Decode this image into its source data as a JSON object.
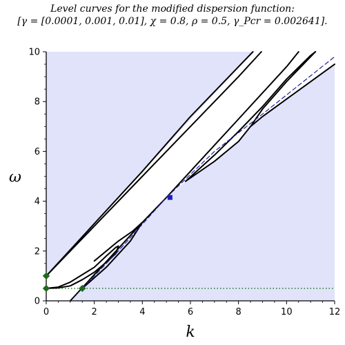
{
  "chart_data": {
    "type": "line",
    "title_line1": "Level curves for the modified dispersion function:",
    "title_line2": "[γ = [0.0001, 0.001, 0.01], χ = 0.8, ρ = 0.5, γ_Pcr = 0.002641].",
    "xlabel": "k",
    "ylabel": "ω",
    "xlim": [
      0,
      12
    ],
    "ylim": [
      0,
      10
    ],
    "x_ticks": [
      "0",
      "2",
      "4",
      "6",
      "8",
      "10",
      "12"
    ],
    "y_ticks": [
      "0",
      "2",
      "4",
      "6",
      "8",
      "10"
    ],
    "grid": false,
    "colors": {
      "shade": "#e1e3fa",
      "curve": "#000000",
      "blue_line": "#1f1f9e",
      "marker_green": "#1e6b1e",
      "marker_blue": "#1f1fbf",
      "dotted": "#2e7d32"
    },
    "series": [
      {
        "type": "curve",
        "points": [
          [
            0,
            1
          ],
          [
            2,
            3
          ],
          [
            4,
            5
          ],
          [
            6,
            7
          ],
          [
            8,
            9
          ],
          [
            8.95,
            10
          ]
        ]
      },
      {
        "type": "curve",
        "points": [
          [
            0,
            1
          ],
          [
            2,
            3.1
          ],
          [
            4,
            5.2
          ],
          [
            6,
            7.4
          ],
          [
            8,
            9.4
          ],
          [
            8.6,
            10
          ]
        ]
      },
      {
        "type": "curve",
        "points": [
          [
            0,
            0.5
          ],
          [
            0.5,
            0.55
          ],
          [
            1,
            0.75
          ],
          [
            2,
            1.35
          ],
          [
            2.5,
            1.8
          ],
          [
            2.9,
            2.15
          ],
          [
            3,
            2.2
          ],
          [
            2.9,
            1.9
          ],
          [
            2.5,
            1.55
          ],
          [
            2,
            1.15
          ],
          [
            1.5,
            0.85
          ],
          [
            1,
            0.6
          ],
          [
            0.5,
            0.52
          ],
          [
            0,
            0.5
          ]
        ]
      },
      {
        "type": "curve",
        "points": [
          [
            1.5,
            0.5
          ],
          [
            2.5,
            1.35
          ],
          [
            3.5,
            2.4
          ],
          [
            4,
            3.15
          ],
          [
            3.6,
            2.8
          ],
          [
            3,
            2.4
          ],
          [
            2,
            1.6
          ]
        ]
      },
      {
        "type": "curve",
        "points": [
          [
            1,
            0
          ],
          [
            2,
            1.05
          ],
          [
            3,
            2.1
          ],
          [
            4,
            3.15
          ],
          [
            5,
            4.15
          ],
          [
            6,
            5.2
          ],
          [
            7,
            6.25
          ],
          [
            8,
            7.3
          ],
          [
            9,
            8.35
          ],
          [
            10,
            9.4
          ],
          [
            10.5,
            10
          ]
        ]
      },
      {
        "type": "curve",
        "points": [
          [
            5.8,
            4.8
          ],
          [
            7,
            5.6
          ],
          [
            8,
            6.4
          ],
          [
            8.5,
            7.0
          ],
          [
            9,
            7.4
          ],
          [
            10,
            8.1
          ],
          [
            11,
            8.8
          ],
          [
            12,
            9.5
          ]
        ]
      },
      {
        "type": "curve",
        "points": [
          [
            8.5,
            7.0
          ],
          [
            9,
            7.7
          ],
          [
            10,
            8.8
          ],
          [
            11,
            9.8
          ],
          [
            11.2,
            10
          ]
        ]
      },
      {
        "type": "curve",
        "points": [
          [
            5.8,
            4.8
          ],
          [
            7,
            5.85
          ],
          [
            8,
            6.8
          ],
          [
            9,
            7.8
          ],
          [
            10,
            8.9
          ],
          [
            11,
            9.85
          ],
          [
            11.2,
            10
          ]
        ]
      },
      {
        "type": "blue",
        "points": [
          [
            1.5,
            0.5
          ],
          [
            3,
            2.0
          ],
          [
            5,
            4.15
          ],
          [
            7,
            6.0
          ],
          [
            9,
            7.5
          ],
          [
            12,
            9.8
          ]
        ]
      }
    ],
    "shade_regions": [
      [
        [
          0,
          0.5
        ],
        [
          0,
          10
        ],
        [
          8.6,
          10
        ],
        [
          0,
          1
        ]
      ],
      [
        [
          1,
          0
        ],
        [
          12,
          0
        ],
        [
          12,
          9.5
        ],
        [
          11,
          8.8
        ],
        [
          10,
          8.1
        ],
        [
          9,
          7.4
        ],
        [
          8.5,
          7.0
        ],
        [
          8,
          6.4
        ],
        [
          7,
          5.6
        ],
        [
          5.8,
          4.8
        ],
        [
          5,
          4.15
        ],
        [
          4,
          3.15
        ],
        [
          3,
          2.1
        ],
        [
          2,
          1.05
        ],
        [
          1,
          0
        ]
      ]
    ],
    "dotted_line_y": 0.5,
    "markers": [
      {
        "x": 0,
        "y": 1,
        "color": "marker_green",
        "shape": "diamond"
      },
      {
        "x": 0,
        "y": 0.5,
        "color": "marker_green",
        "shape": "diamond"
      },
      {
        "x": 1.5,
        "y": 0.5,
        "color": "marker_green",
        "shape": "diamond"
      },
      {
        "x": 5.15,
        "y": 4.15,
        "color": "marker_blue",
        "shape": "square"
      }
    ]
  }
}
